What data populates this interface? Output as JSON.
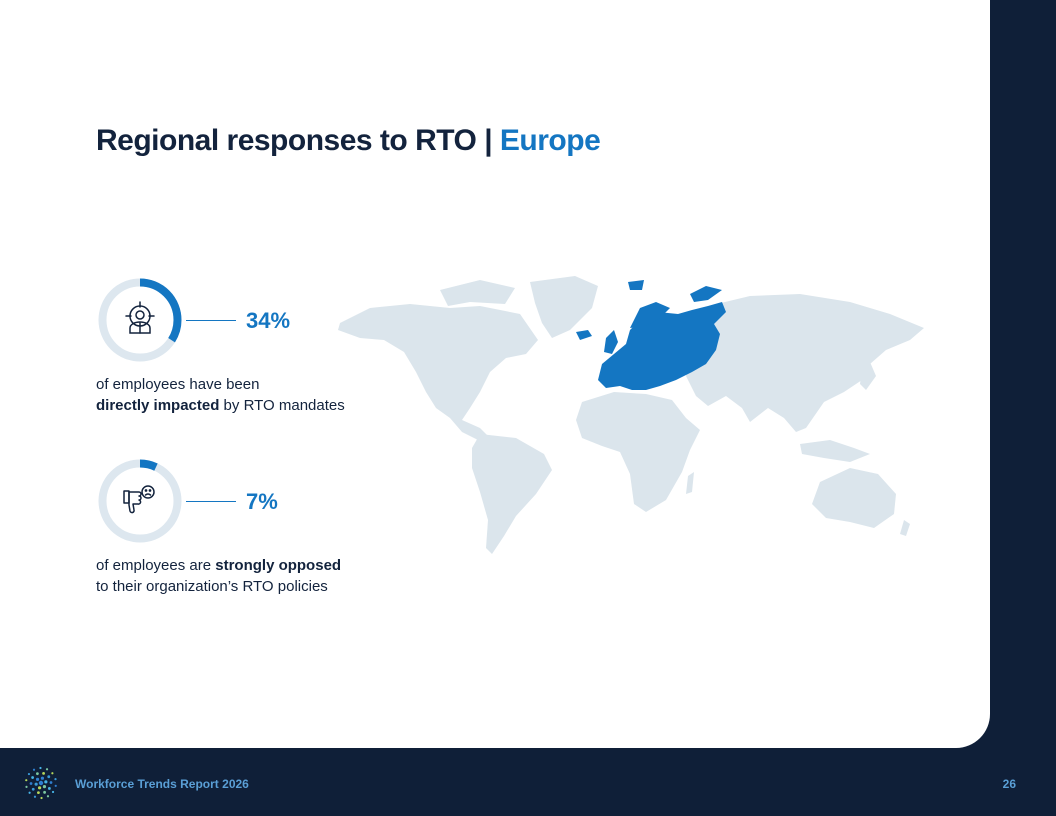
{
  "title": {
    "main": "Regional responses to RTO | ",
    "region": "Europe"
  },
  "stats": [
    {
      "value": "34%",
      "fraction": 0.34,
      "icon": "target-person-icon",
      "line1_plain": "of employees have been",
      "line2_bold": "directly impacted",
      "line2_plain": " by RTO mandates"
    },
    {
      "value": "7%",
      "fraction": 0.07,
      "icon": "thumbs-down-sad-icon",
      "line1_plain": "of employees are ",
      "line1_bold": "strongly opposed",
      "line2_plain": "to their organization’s RTO policies"
    }
  ],
  "map": {
    "highlighted_region": "Europe"
  },
  "colors": {
    "accent": "#1476c2",
    "track": "#dde7ef",
    "land": "#dbe5ec",
    "navy": "#0f1f38",
    "text": "#13233d"
  },
  "footer": {
    "report_title": "Workforce Trends Report 2026",
    "page_number": "26"
  }
}
